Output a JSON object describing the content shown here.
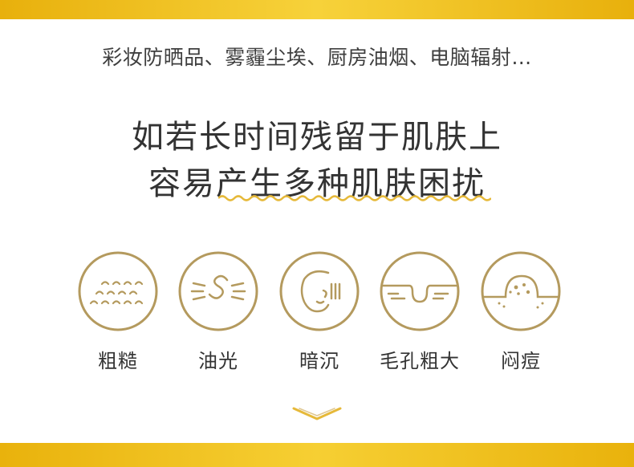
{
  "intro": "彩妆防晒品、雾霾尘埃、厨房油烟、电脑辐射…",
  "headline": {
    "line1": "如若长时间残留于肌肤上",
    "line2": "容易产生多种肌肤困扰"
  },
  "problems": [
    {
      "label": "粗糙",
      "icon": "rough-skin-icon"
    },
    {
      "label": "油光",
      "icon": "oily-shine-icon"
    },
    {
      "label": "暗沉",
      "icon": "dull-face-icon"
    },
    {
      "label": "毛孔粗大",
      "icon": "enlarged-pores-icon"
    },
    {
      "label": "闷痘",
      "icon": "closed-acne-icon"
    }
  ],
  "colors": {
    "gold": "#b49a5e",
    "band_yellow": "#f1c11d",
    "text": "#333333"
  }
}
